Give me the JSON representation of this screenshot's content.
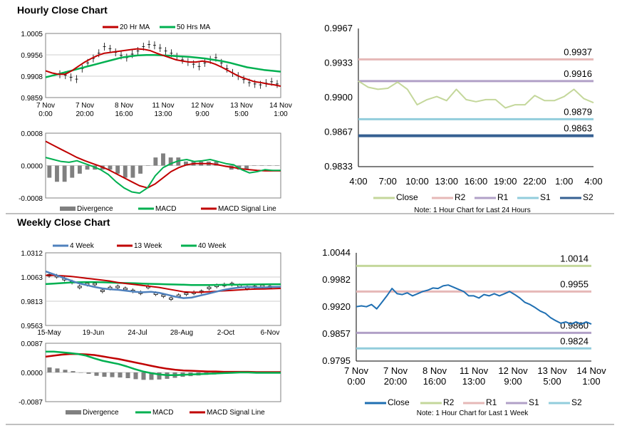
{
  "hourly_title": "Hourly Close Chart",
  "weekly_title": "Weekly Close Chart",
  "colors": {
    "ma_short": "#c00000",
    "ma_long": "#00b050",
    "ma_4wk": "#4f81bd",
    "macd": "#00b050",
    "signal": "#c00000",
    "divergence": "#808080",
    "close_green": "#c4d79b",
    "r2_pink": "#e6b8b7",
    "r1_purple": "#b1a0c7",
    "s1_cyan": "#92cddc",
    "s2_blue": "#366092",
    "close_blue": "#1f6fb2"
  },
  "chart_data": [
    {
      "id": "hourly_price",
      "type": "line",
      "legend": [
        "20 Hr MA",
        "50 Hrs MA"
      ],
      "x_ticks": [
        [
          "7 Nov",
          "0:00"
        ],
        [
          "7 Nov",
          "20:00"
        ],
        [
          "8 Nov",
          "16:00"
        ],
        [
          "11 Nov",
          "13:00"
        ],
        [
          "12 Nov",
          "9:00"
        ],
        [
          "13 Nov",
          "5:00"
        ],
        [
          "14 Nov",
          "1:00"
        ]
      ],
      "y_ticks": [
        "1.0005",
        "0.9956",
        "0.9908",
        "0.9859"
      ],
      "ylim": [
        0.9859,
        1.0005
      ],
      "price": [
        0.9912,
        0.991,
        0.9905,
        0.9901,
        0.9925,
        0.9938,
        0.9948,
        0.996,
        0.9975,
        0.997,
        0.9962,
        0.9955,
        0.995,
        0.9958,
        0.9965,
        0.9975,
        0.998,
        0.9978,
        0.9972,
        0.9965,
        0.996,
        0.9952,
        0.9945,
        0.994,
        0.9935,
        0.993,
        0.9938,
        0.9945,
        0.995,
        0.9938,
        0.9925,
        0.9915,
        0.9908,
        0.99,
        0.9893,
        0.989,
        0.9888,
        0.9892,
        0.9895,
        0.989
      ],
      "ma20": [
        0.992,
        0.9915,
        0.9912,
        0.9912,
        0.992,
        0.993,
        0.994,
        0.9948,
        0.9955,
        0.996,
        0.9962,
        0.9964,
        0.9966,
        0.9968,
        0.997,
        0.9969,
        0.9966,
        0.996,
        0.9955,
        0.995,
        0.9945,
        0.9942,
        0.994,
        0.994,
        0.9942,
        0.994,
        0.9935,
        0.9928,
        0.992,
        0.9912,
        0.9905,
        0.99,
        0.9895,
        0.9893,
        0.989,
        0.9888,
        0.9885
      ],
      "ma50": [
        0.9905,
        0.991,
        0.9915,
        0.992,
        0.9925,
        0.993,
        0.9935,
        0.994,
        0.9945,
        0.995,
        0.9953,
        0.9955,
        0.9956,
        0.9956,
        0.9955,
        0.9954,
        0.9953,
        0.9952,
        0.995,
        0.9948,
        0.9945,
        0.9942,
        0.9938,
        0.9933,
        0.9928,
        0.9925,
        0.9922,
        0.992,
        0.9918
      ]
    },
    {
      "id": "hourly_macd",
      "type": "line",
      "legend": [
        "Divergence",
        "MACD",
        "MACD Signal Line"
      ],
      "y_ticks": [
        "0.0008",
        "0.0000",
        "-0.0008"
      ],
      "ylim": [
        -0.0008,
        0.0008
      ],
      "macd": [
        0.0002,
        0.00015,
        0.0001,
        8e-05,
        0.00012,
        5e-05,
        -2e-05,
        -0.0001,
        -0.00022,
        -0.0004,
        -0.00055,
        -0.00065,
        -0.00068,
        -0.00055,
        -0.00025,
        -5e-05,
        5e-05,
        0.00012,
        0.00015,
        0.0001,
        0.00012,
        0.00015,
        0.0001,
        5e-05,
        2e-05,
        -0.0001,
        -0.00018,
        -0.00015,
        -0.0001,
        -0.00012,
        -0.00012
      ],
      "signal": [
        0.0006,
        0.0005,
        0.0004,
        0.0003,
        0.0002,
        0.00012,
        5e-05,
        -2e-05,
        -0.0001,
        -0.0002,
        -0.0003,
        -0.0004,
        -0.0005,
        -0.00055,
        -0.00045,
        -0.0003,
        -0.00015,
        -5e-05,
        2e-05,
        5e-05,
        5e-05,
        5e-05,
        2e-05,
        -2e-05,
        -5e-05,
        -8e-05,
        -0.0001,
        -0.00012,
        -0.00013,
        -0.00013,
        -0.00013
      ],
      "divergence": [
        -0.0003,
        -0.0004,
        -0.0004,
        -0.0003,
        -0.0002,
        -0.0001,
        -0.0001,
        -0.0001,
        -0.0001,
        -0.0002,
        -0.0003,
        -0.0003,
        -0.0002,
        0.0,
        0.0002,
        0.0003,
        0.0002,
        0.0002,
        0.0001,
        0.0001,
        0.0001,
        0.0001,
        0.0001,
        0.0,
        -0.0001,
        -0.0001,
        -0.0001,
        0.0,
        0.0,
        0.0,
        0.0
      ]
    },
    {
      "id": "hourly_levels",
      "type": "line",
      "legend": [
        "Close",
        "R2",
        "R1",
        "S1",
        "S2"
      ],
      "x_ticks": [
        "4:00",
        "7:00",
        "10:00",
        "13:00",
        "16:00",
        "19:00",
        "22:00",
        "1:00",
        "4:00"
      ],
      "y_ticks": [
        "0.9967",
        "0.9933",
        "0.9900",
        "0.9867",
        "0.9833"
      ],
      "ylim": [
        0.9833,
        0.9967
      ],
      "close": [
        0.9916,
        0.991,
        0.9908,
        0.9909,
        0.9915,
        0.9908,
        0.9893,
        0.9898,
        0.9901,
        0.9897,
        0.9908,
        0.9898,
        0.9896,
        0.9898,
        0.9898,
        0.989,
        0.9893,
        0.9893,
        0.9902,
        0.9897,
        0.9897,
        0.9901,
        0.9908,
        0.9899,
        0.9895
      ],
      "levels": [
        {
          "name": "R2",
          "value": 0.9937,
          "label": "0.9937"
        },
        {
          "name": "R1",
          "value": 0.9916,
          "label": "0.9916"
        },
        {
          "name": "S1",
          "value": 0.9879,
          "label": "0.9879"
        },
        {
          "name": "S2",
          "value": 0.9863,
          "label": "0.9863"
        }
      ],
      "note": "Note: 1 Hour Chart for Last 24 Hours"
    },
    {
      "id": "weekly_price",
      "type": "line",
      "legend": [
        "4 Week",
        "13 Week",
        "40 Week"
      ],
      "x_ticks": [
        "15-May",
        "19-Jun",
        "24-Jul",
        "28-Aug",
        "2-Oct",
        "6-Nov"
      ],
      "y_ticks": [
        "1.0312",
        "1.0063",
        "0.9813",
        "0.9563"
      ],
      "ylim": [
        0.9563,
        1.0312
      ],
      "candles": [
        1.008,
        1.007,
        1.004,
        1.001,
        0.996,
        0.999,
        0.999,
        0.992,
        0.995,
        0.996,
        0.994,
        0.992,
        0.99,
        0.996,
        0.989,
        0.987,
        0.984,
        0.987,
        0.989,
        0.99,
        0.991,
        0.995,
        0.997,
        0.998,
        0.999,
        0.997,
        0.995,
        0.996,
        0.997,
        0.996
      ],
      "ma4": [
        1.012,
        1.009,
        1.006,
        1.003,
        1.0,
        0.998,
        0.996,
        0.9945,
        0.9935,
        0.993,
        0.992,
        0.991,
        0.9905,
        0.991,
        0.99,
        0.988,
        0.986,
        0.9845,
        0.985,
        0.987,
        0.989,
        0.991,
        0.993,
        0.9945,
        0.9955,
        0.996,
        0.9955,
        0.9955,
        0.996,
        0.9962
      ],
      "ma13": [
        1.008,
        1.008,
        1.0075,
        1.007,
        1.006,
        1.005,
        1.004,
        1.003,
        1.002,
        1.0005,
        0.9995,
        0.9985,
        0.9975,
        0.9965,
        0.9955,
        0.994,
        0.9925,
        0.991,
        0.9905,
        0.9905,
        0.991,
        0.9915,
        0.992,
        0.9925,
        0.993,
        0.9935,
        0.9938,
        0.994,
        0.9942,
        0.9945
      ],
      "ma40": [
        0.999,
        0.9995,
        1.0,
        1.0005,
        1.0008,
        1.001,
        1.001,
        1.0008,
        1.0005,
        1.0002,
        1.0,
        0.9998,
        0.9995,
        0.9992,
        0.999,
        0.9987,
        0.9985,
        0.9983,
        0.998,
        0.998,
        0.998,
        0.9981,
        0.9982,
        0.9983,
        0.9984,
        0.9985,
        0.9986,
        0.9987,
        0.9988,
        0.9988
      ]
    },
    {
      "id": "weekly_macd",
      "type": "line",
      "legend": [
        "Divergence",
        "MACD",
        "MACD Signal Line"
      ],
      "y_ticks": [
        "0.0087",
        "0.0000",
        "-0.0087"
      ],
      "ylim": [
        -0.0087,
        0.0087
      ],
      "macd": [
        0.0062,
        0.0062,
        0.006,
        0.0058,
        0.0055,
        0.005,
        0.0042,
        0.0035,
        0.003,
        0.0025,
        0.0018,
        0.001,
        0.0003,
        -0.0002,
        -0.0006,
        -0.0008,
        -0.0008,
        -0.0007,
        -0.0006,
        -0.0005,
        -0.0004,
        -0.0003,
        -0.0002,
        -0.0001,
        0.0,
        0.0,
        -0.0001,
        -0.0001,
        -0.0001,
        -0.0001
      ],
      "signal": [
        0.0047,
        0.005,
        0.0053,
        0.0055,
        0.0055,
        0.0054,
        0.0052,
        0.0048,
        0.0044,
        0.004,
        0.0035,
        0.003,
        0.0025,
        0.002,
        0.0015,
        0.0011,
        0.0008,
        0.0006,
        0.0005,
        0.0004,
        0.0003,
        0.0003,
        0.0002,
        0.0002,
        0.0002,
        0.0002,
        0.0001,
        0.0001,
        0.0001,
        0.0001
      ],
      "divergence": [
        0.0015,
        0.0012,
        0.0008,
        0.0004,
        0.0,
        -0.0004,
        -0.001,
        -0.0013,
        -0.0014,
        -0.0015,
        -0.0017,
        -0.002,
        -0.0022,
        -0.0022,
        -0.0021,
        -0.0019,
        -0.0016,
        -0.0013,
        -0.0011,
        -0.0009,
        -0.0007,
        -0.0006,
        -0.0004,
        -0.0003,
        -0.0002,
        -0.0002,
        -0.0002,
        -0.0002,
        -0.0002,
        -0.0002
      ]
    },
    {
      "id": "weekly_levels",
      "type": "line",
      "legend": [
        "Close",
        "R2",
        "R1",
        "S1",
        "S2"
      ],
      "x_ticks": [
        [
          "7 Nov",
          "0:00"
        ],
        [
          "7 Nov",
          "20:00"
        ],
        [
          "8 Nov",
          "16:00"
        ],
        [
          "11 Nov",
          "13:00"
        ],
        [
          "12 Nov",
          "9:00"
        ],
        [
          "13 Nov",
          "5:00"
        ],
        [
          "14 Nov",
          "1:00"
        ]
      ],
      "y_ticks": [
        "1.0044",
        "0.9982",
        "0.9920",
        "0.9857",
        "0.9795"
      ],
      "ylim": [
        0.9795,
        1.0044
      ],
      "close": [
        0.992,
        0.9922,
        0.992,
        0.9925,
        0.9915,
        0.993,
        0.9945,
        0.9962,
        0.995,
        0.9948,
        0.9952,
        0.9945,
        0.995,
        0.9955,
        0.9958,
        0.9963,
        0.9962,
        0.9968,
        0.997,
        0.9965,
        0.996,
        0.9955,
        0.9945,
        0.9945,
        0.994,
        0.9948,
        0.9945,
        0.995,
        0.9945,
        0.995,
        0.9955,
        0.9948,
        0.994,
        0.993,
        0.9925,
        0.9918,
        0.991,
        0.9905,
        0.9895,
        0.9888,
        0.9882,
        0.9885,
        0.988,
        0.9885,
        0.988,
        0.9885,
        0.988
      ],
      "levels": [
        {
          "name": "R2",
          "value": 1.0014,
          "label": "1.0014"
        },
        {
          "name": "R1",
          "value": 0.9955,
          "label": "0.9955"
        },
        {
          "name": "S1",
          "value": 0.986,
          "label": "0.9860"
        },
        {
          "name": "S2",
          "value": 0.9824,
          "label": "0.9824"
        }
      ],
      "note": "Note: 1 Hour Chart for Last 1 Week"
    }
  ]
}
